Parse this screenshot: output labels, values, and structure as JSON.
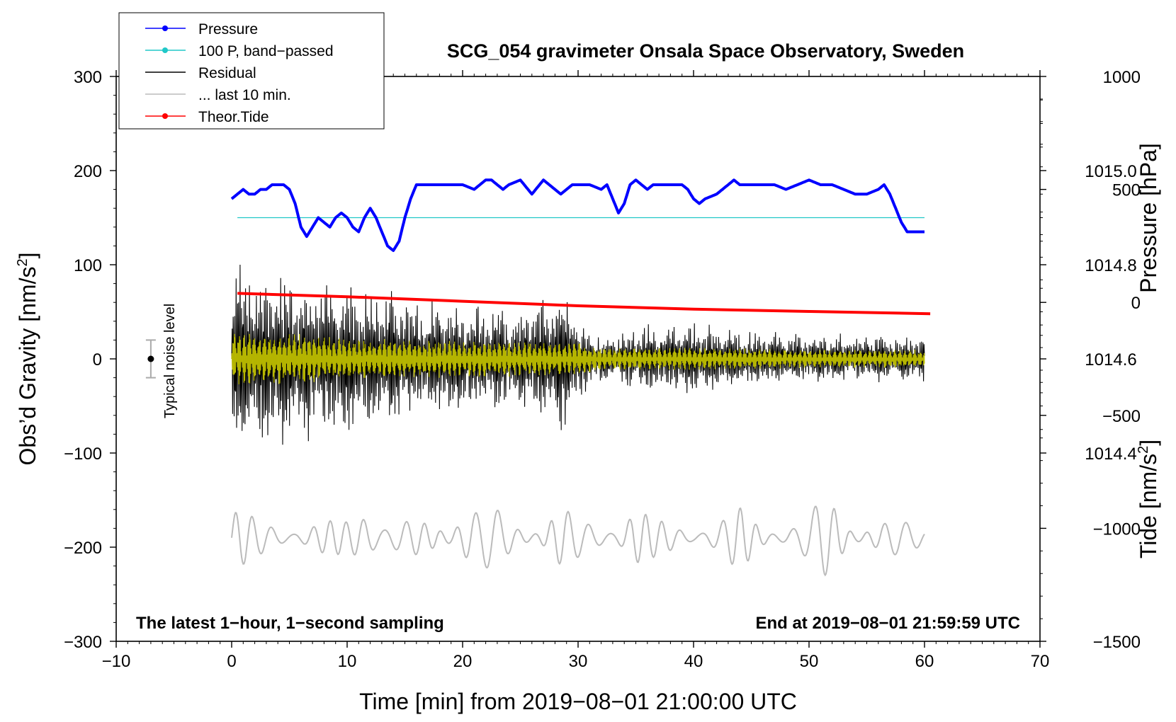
{
  "chart_data": {
    "type": "line",
    "title": "SCG_054 gravimeter Onsala Space Observatory, Sweden",
    "xlabel": "Time [min] from 2019−08−01 21:00:00 UTC",
    "ylabel": "Obs’d Gravity [nm/s",
    "ylabel_sup": "2",
    "ylabel_close": "]",
    "right_pressure_label": "Pressure [hPa]",
    "right_tide_label": "Tide [nm/s",
    "right_tide_sup": "2",
    "right_tide_close": "]",
    "xlim": [
      -10,
      70
    ],
    "ylim": [
      -300,
      300
    ],
    "x_ticks": [
      -10,
      0,
      10,
      20,
      30,
      40,
      50,
      60,
      70
    ],
    "x_tick_labels": [
      "−10",
      "0",
      "10",
      "20",
      "30",
      "40",
      "50",
      "60",
      "70"
    ],
    "y_ticks": [
      300,
      200,
      100,
      0,
      -100,
      -200,
      -300
    ],
    "y_tick_labels": [
      "300",
      "200",
      "100",
      "0",
      "−100",
      "−200",
      "−300"
    ],
    "pressure_axis": {
      "ylim": [
        1014.0,
        1015.2
      ],
      "ticks": [
        1015.0,
        1014.8,
        1014.6,
        1014.4
      ],
      "tick_labels": [
        "1015.0",
        "1014.8",
        "1014.6",
        "1014.4"
      ]
    },
    "tide_axis": {
      "ylim": [
        -1500,
        1000
      ],
      "ticks": [
        1000,
        500,
        0,
        -500,
        -1000,
        -1500
      ],
      "tick_labels": [
        "1000",
        "500",
        "0",
        "−500",
        "−1000",
        "−1500"
      ]
    },
    "legend": [
      {
        "label": "Pressure",
        "color": "#0000ff",
        "marker": true
      },
      {
        "label": "100 P, band−passed",
        "color": "#20c8c8",
        "marker": true
      },
      {
        "label": "Residual",
        "color": "#000000",
        "marker": false
      },
      {
        "label": "... last 10 min.",
        "color": "#bbbbbb",
        "marker": false
      },
      {
        "label": "Theor.Tide",
        "color": "#ff0000",
        "marker": true
      }
    ],
    "noise_label": "Typical noise level",
    "noise_level": {
      "x": -7,
      "center": 0,
      "half_range": 20
    },
    "bottom_left_label": "The latest 1−hour, 1−second sampling",
    "bottom_right_label": "End at 2019−08−01 21:59:59 UTC",
    "series": [
      {
        "name": "Pressure",
        "axis": "pressure",
        "color": "#0000ff",
        "x": [
          0,
          0.5,
          1,
          1.5,
          2,
          2.5,
          3,
          3.5,
          4,
          4.5,
          5,
          5.5,
          6,
          6.5,
          7,
          7.5,
          8,
          8.5,
          9,
          9.5,
          10,
          10.5,
          11,
          11.5,
          12,
          12.5,
          13,
          13.5,
          14,
          14.5,
          15,
          15.5,
          16,
          16.5,
          17,
          18,
          19,
          20,
          21,
          22,
          22.5,
          23,
          23.5,
          24,
          25,
          26,
          27,
          28,
          28.5,
          29,
          29.5,
          30,
          31,
          32,
          32.5,
          33,
          33.5,
          34,
          34.5,
          35,
          35.5,
          36,
          36.5,
          37,
          37.5,
          38,
          39,
          39.5,
          40,
          40.5,
          41,
          42,
          43,
          43.5,
          44,
          45,
          46,
          47,
          48,
          49,
          50,
          51,
          52,
          53,
          54,
          55,
          56,
          56.5,
          57,
          57.5,
          58,
          58.5,
          59,
          60
        ],
        "y": [
          1014.94,
          1014.95,
          1014.96,
          1014.95,
          1014.95,
          1014.96,
          1014.96,
          1014.97,
          1014.97,
          1014.97,
          1014.96,
          1014.93,
          1014.88,
          1014.86,
          1014.88,
          1014.9,
          1014.89,
          1014.88,
          1014.9,
          1014.91,
          1014.9,
          1014.88,
          1014.87,
          1014.9,
          1014.92,
          1014.9,
          1014.87,
          1014.84,
          1014.83,
          1014.85,
          1014.9,
          1014.94,
          1014.97,
          1014.97,
          1014.97,
          1014.97,
          1014.97,
          1014.97,
          1014.96,
          1014.98,
          1014.98,
          1014.97,
          1014.96,
          1014.97,
          1014.98,
          1014.95,
          1014.98,
          1014.96,
          1014.95,
          1014.96,
          1014.97,
          1014.97,
          1014.97,
          1014.96,
          1014.97,
          1014.94,
          1014.91,
          1014.93,
          1014.97,
          1014.98,
          1014.97,
          1014.96,
          1014.97,
          1014.97,
          1014.97,
          1014.97,
          1014.97,
          1014.96,
          1014.94,
          1014.93,
          1014.94,
          1014.95,
          1014.97,
          1014.98,
          1014.97,
          1014.97,
          1014.97,
          1014.97,
          1014.96,
          1014.97,
          1014.98,
          1014.97,
          1014.97,
          1014.96,
          1014.95,
          1014.95,
          1014.96,
          1014.97,
          1014.95,
          1014.92,
          1014.89,
          1014.87,
          1014.87,
          1014.87
        ]
      },
      {
        "name": "100 P, band−passed",
        "axis": "left",
        "color": "#20c8c8",
        "x": [
          0.5,
          60
        ],
        "y": [
          150,
          150
        ]
      },
      {
        "name": "Residual",
        "axis": "left",
        "color": "#000000",
        "t_range": [
          0,
          60
        ],
        "envelope_x": [
          0,
          5,
          10,
          15,
          20,
          25,
          29,
          30,
          32,
          35,
          40,
          45,
          50,
          55,
          60
        ],
        "envelope_y": [
          110,
          90,
          80,
          70,
          60,
          52,
          80,
          45,
          25,
          35,
          38,
          30,
          28,
          26,
          25
        ]
      },
      {
        "name": "Residual (yellow trace)",
        "axis": "left",
        "color": "#c8c800",
        "t_range": [
          0,
          60
        ],
        "envelope_x": [
          0,
          5,
          10,
          20,
          30,
          32,
          40,
          50,
          60
        ],
        "envelope_y": [
          28,
          28,
          22,
          20,
          18,
          12,
          12,
          10,
          10
        ]
      },
      {
        "name": "... last 10 min.",
        "axis": "left",
        "color": "#bbbbbb",
        "t_range": [
          0,
          60
        ],
        "center": -190,
        "amplitude": 18,
        "bursts": [
          0.5,
          11.5,
          20.5,
          22.5,
          28.5,
          35,
          44,
          51,
          52
        ]
      },
      {
        "name": "Theor.Tide",
        "axis": "tide",
        "color": "#ff0000",
        "x": [
          0.5,
          10,
          20,
          30,
          40,
          50,
          60.5
        ],
        "y": [
          40,
          25,
          5,
          -15,
          -30,
          -40,
          -50
        ]
      }
    ]
  }
}
